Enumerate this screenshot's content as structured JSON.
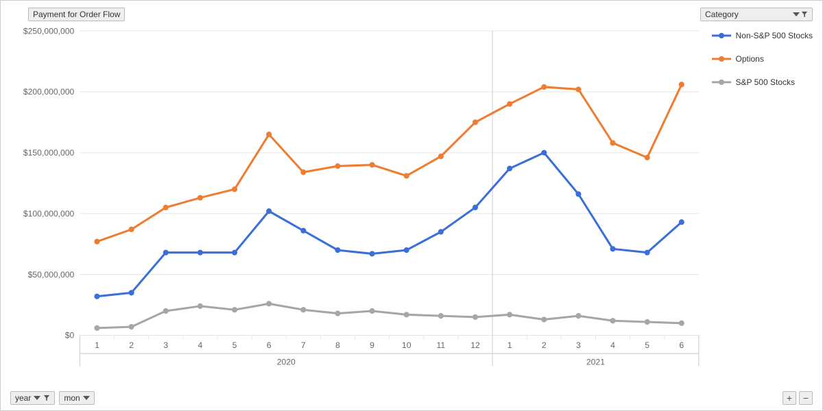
{
  "buttons": {
    "value_field": "Payment for Order Flow",
    "category": "Category",
    "year": "year",
    "month": "mon",
    "plus": "+",
    "minus": "−"
  },
  "chart": {
    "type": "line",
    "background_color": "#ffffff",
    "grid_color": "#e6e6e6",
    "axis_text_color": "#666666",
    "line_width": 3,
    "marker_radius": 4,
    "y": {
      "min": 0,
      "max": 250000000,
      "ticks": [
        0,
        50000000,
        100000000,
        150000000,
        200000000,
        250000000
      ],
      "tick_labels": [
        "$0",
        "$50,000,000",
        "$100,000,000",
        "$150,000,000",
        "$200,000,000",
        "$250,000,000"
      ]
    },
    "x": {
      "labels": [
        "1",
        "2",
        "3",
        "4",
        "5",
        "6",
        "7",
        "8",
        "9",
        "10",
        "11",
        "12",
        "1",
        "2",
        "3",
        "4",
        "5",
        "6"
      ],
      "years": [
        {
          "label": "2020",
          "span": [
            0,
            11
          ]
        },
        {
          "label": "2021",
          "span": [
            12,
            17
          ]
        }
      ]
    },
    "series": [
      {
        "name": "Non-S&P 500 Stocks",
        "color": "#3a6fd8",
        "values": [
          32000000,
          35000000,
          68000000,
          68000000,
          68000000,
          102000000,
          86000000,
          70000000,
          67000000,
          70000000,
          85000000,
          105000000,
          137000000,
          150000000,
          116000000,
          71000000,
          68000000,
          93000000
        ]
      },
      {
        "name": "Options",
        "color": "#ed7d31",
        "values": [
          77000000,
          87000000,
          105000000,
          113000000,
          120000000,
          165000000,
          134000000,
          139000000,
          140000000,
          131000000,
          147000000,
          175000000,
          190000000,
          204000000,
          202000000,
          158000000,
          146000000,
          206000000
        ]
      },
      {
        "name": "S&P 500 Stocks",
        "color": "#a6a6a6",
        "values": [
          6000000,
          7000000,
          20000000,
          24000000,
          21000000,
          26000000,
          21000000,
          18000000,
          20000000,
          17000000,
          16000000,
          15000000,
          17000000,
          13000000,
          16000000,
          12000000,
          11000000,
          10000000
        ]
      }
    ]
  }
}
